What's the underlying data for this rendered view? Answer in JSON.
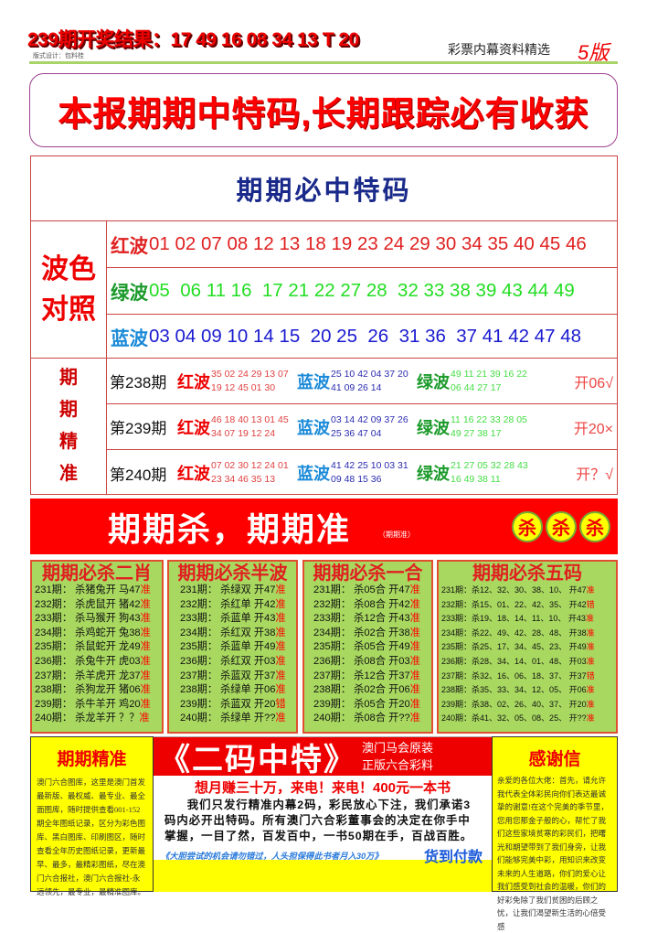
{
  "header": {
    "result": "239期开奖结果：17 49 16 08 34 13 T 20",
    "credit": "版式设计：包料桂",
    "subtitle": "彩票内幕资料精选",
    "edition": "5版"
  },
  "slogan": "本报期期中特码,长期跟踪必有收获",
  "main": {
    "title": "期期必中特码",
    "wave_label": [
      "波色",
      "对照"
    ],
    "waves": [
      {
        "label": "红波",
        "color": "#e02020",
        "label_color": "#e02020",
        "numbers": "01 02 07 08 12 13 18 19 23 24 29 30 34 35 40 45 46"
      },
      {
        "label": "绿波",
        "color": "#22dd22",
        "label_color": "#1a9a2a",
        "numbers": "05  06 11 16  17 21 22 27 28  32 33 38 39 43 44 49"
      },
      {
        "label": "蓝波",
        "color": "#1a1ad0",
        "label_color": "#1a8ad8",
        "numbers": "03 04 09 10 14 15  20 25  26  31 36  37 41 42 47 48"
      }
    ],
    "period_label": [
      "期",
      "期",
      "精",
      "准"
    ],
    "periods": [
      {
        "name": "第238期",
        "red": [
          "35 02 24 29 13 07",
          "19 12 45 01 30"
        ],
        "blue": [
          "25 10 42 04 37 20",
          "41 09 26 14"
        ],
        "green": [
          "49 11 21 39 16 22",
          "06 44 27 17"
        ],
        "result": "开06√"
      },
      {
        "name": "第239期",
        "red": [
          "46 18 40 13 01 45",
          "34 07 19 12 24"
        ],
        "blue": [
          "03 14 42 09 37 26",
          "25 36 47 04"
        ],
        "green": [
          "11 16 22 33 28 05",
          "49 27 38 17"
        ],
        "result": "开20×"
      },
      {
        "name": "第240期",
        "red": [
          "07 02 30 12 24 01",
          "23 34 46 35 13"
        ],
        "blue": [
          "41 42 25 10 03 31",
          "09 48 15 36"
        ],
        "green": [
          "21 27 05 32 28 43",
          "16 49 38 11"
        ],
        "result": "开？√"
      }
    ],
    "red_label": "红波",
    "blue_label": "蓝波",
    "green_label": "绿波"
  },
  "banner": {
    "title": "期期杀，期期准",
    "small": "（期期准）",
    "kill": [
      "杀",
      "杀",
      "杀"
    ]
  },
  "columns": [
    {
      "title": "期期必杀二肖",
      "rows": [
        [
          "231期：  杀猪兔开   马47",
          "准"
        ],
        [
          "232期：  杀虎鼠开   猪42",
          "准"
        ],
        [
          "233期：  杀马猴开   狗43",
          "准"
        ],
        [
          "234期：  杀鸡蛇开   兔38",
          "准"
        ],
        [
          "235期：  杀鼠蛇开   龙49",
          "准"
        ],
        [
          "236期：  杀兔牛开   虎03",
          "准"
        ],
        [
          "237期：  杀羊虎开   龙37",
          "准"
        ],
        [
          "238期：  杀狗龙开   猪06",
          "准"
        ],
        [
          "239期：  杀牛羊开   鸡20",
          "准"
        ],
        [
          "240期：  杀龙羊开   ？？",
          "准"
        ]
      ]
    },
    {
      "title": "期期必杀半波",
      "rows": [
        [
          "231期：  杀绿双  开47",
          "准"
        ],
        [
          "232期：  杀红单  开42",
          "准"
        ],
        [
          "233期：  杀蓝单  开43",
          "准"
        ],
        [
          "234期：  杀红双  开38",
          "准"
        ],
        [
          "235期：  杀蓝单  开49",
          "准"
        ],
        [
          "236期：  杀红双  开03",
          "准"
        ],
        [
          "237期：  杀蓝双  开37",
          "准"
        ],
        [
          "238期：  杀绿单  开06",
          "准"
        ],
        [
          "239期：  杀蓝双  开20",
          "错"
        ],
        [
          "240期：  杀绿单  开??",
          "准"
        ]
      ]
    },
    {
      "title": "期期必杀一合",
      "rows": [
        [
          "231期：  杀05合  开47",
          "准"
        ],
        [
          "232期：  杀08合  开42",
          "准"
        ],
        [
          "233期：  杀12合  开43",
          "准"
        ],
        [
          "234期：  杀02合  开38",
          "准"
        ],
        [
          "235期：  杀05合  开49",
          "准"
        ],
        [
          "236期：  杀08合  开03",
          "准"
        ],
        [
          "237期：  杀12合  开37",
          "准"
        ],
        [
          "238期：  杀02合  开06",
          "准"
        ],
        [
          "239期：  杀05合  开20",
          "准"
        ],
        [
          "240期：  杀08合  开??",
          "准"
        ]
      ]
    },
    {
      "title": "期期必杀五码",
      "rows": [
        [
          "231期：杀12、32、30、38、10、  开47",
          "准"
        ],
        [
          "232期：杀15、01、22、42、35、  开42",
          "错"
        ],
        [
          "233期：杀19、18、14、11、10、  开43",
          "准"
        ],
        [
          "234期：杀22、49、42、28、48、  开38",
          "准"
        ],
        [
          "235期：杀25、17、34、45、23、  开49",
          "准"
        ],
        [
          "236期：杀28、34、14、01、48、  开03",
          "准"
        ],
        [
          "237期：杀32、16、06、18、37、  开37",
          "错"
        ],
        [
          "238期：杀35、33、34、12、05、  开06",
          "准"
        ],
        [
          "239期：杀38、02、26、40、37、  开20",
          "准"
        ],
        [
          "240期：杀41、32、05、08、25、  开??",
          "准"
        ]
      ]
    }
  ],
  "bottom_left": {
    "title": "期期精准",
    "text": "澳门六合图库，这里是澳门首发最新版、最权威、最专业、最全面图库，随时提供查看001-152期全年图纸记录，区分为彩色图库、黑白图库、印刷图区，随时查看全年历史图纸记录，更新最早、最多，最精彩图纸，尽在澳门六合报社，澳门六合报社-永远领先，最专业，最精准图库。"
  },
  "bottom_center": {
    "big": "《二码中特》",
    "side": [
      "澳门马会原装",
      "正版六合彩料"
    ],
    "promo": "想月赚三十万，来电！来电！400元一本书",
    "body": "我们只发行精准内幕2码，彩民放心下注，我们承诺3码内必开出特码。所有澳门六合彩董事会的决定在你手中掌握，一目了然，百发百中，一书50期在手，百战百胜。",
    "foot_left": "《大胆尝试的机会请勿错过，人头担保得此书者月入30万》",
    "foot_right": "货到付款"
  },
  "bottom_right": {
    "title": "感谢信",
    "text": "亲爱的各位大佬：首先，请允许我代表全体彩民向你们表达最诚挚的谢意!在这个完美的季节里，您用您那金子般的心，帮忙了我们这些家境贫寒的彩民们，把曙光和期望带到了我们身旁，让我们能够完美中彩，用知识来改变未来的人生道路，你们的爱心让我们感受到社会的温暖，你们的好彩免除了我们贫困的后顾之忧，让我们渴望新生活的心倍受感"
  },
  "colors": {
    "red": "#ff0000",
    "green_panel": "#a8d860",
    "yellow": "#ffff00",
    "title_blue": "#1a2a8a"
  }
}
